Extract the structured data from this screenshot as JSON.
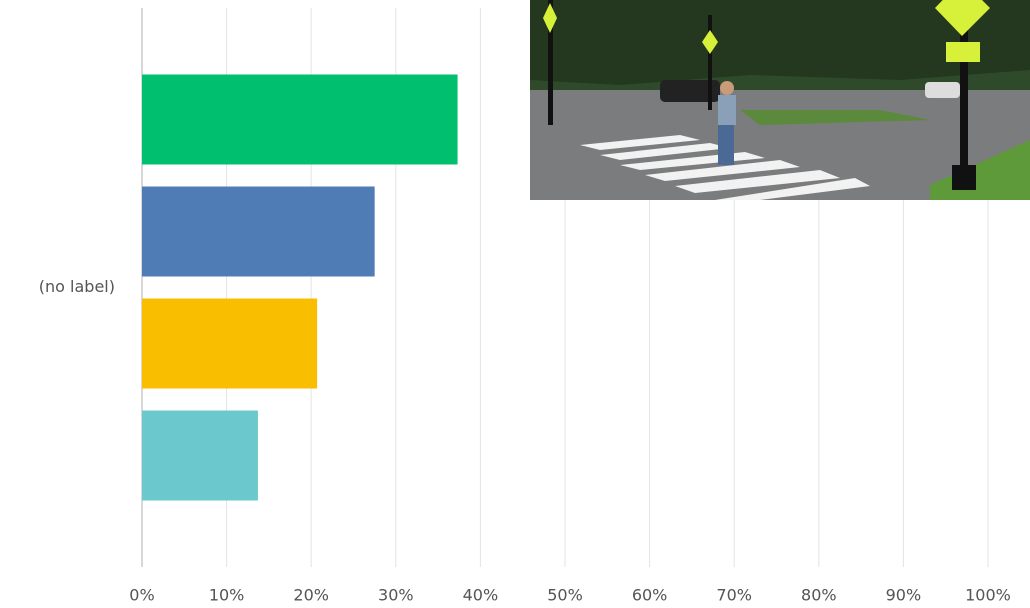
{
  "chart_data": {
    "type": "bar",
    "orientation": "horizontal",
    "categories": [
      "(no label)"
    ],
    "series": [
      {
        "color": "#00bf6f",
        "values": [
          37.3
        ]
      },
      {
        "color": "#507cb6",
        "values": [
          27.5
        ]
      },
      {
        "color": "#f9be00",
        "values": [
          20.7
        ]
      },
      {
        "color": "#6bc8cd",
        "values": [
          13.7
        ]
      }
    ],
    "xlim": [
      0,
      100
    ],
    "xticks": [
      {
        "value": 0,
        "label": "0%"
      },
      {
        "value": 10,
        "label": "10%"
      },
      {
        "value": 20,
        "label": "20%"
      },
      {
        "value": 30,
        "label": "30%"
      },
      {
        "value": 40,
        "label": "40%"
      },
      {
        "value": 50,
        "label": "50%"
      },
      {
        "value": 60,
        "label": "60%"
      },
      {
        "value": 70,
        "label": "70%"
      },
      {
        "value": 80,
        "label": "80%"
      },
      {
        "value": 90,
        "label": "90%"
      },
      {
        "value": 100,
        "label": "100%"
      }
    ],
    "grid": true
  }
}
